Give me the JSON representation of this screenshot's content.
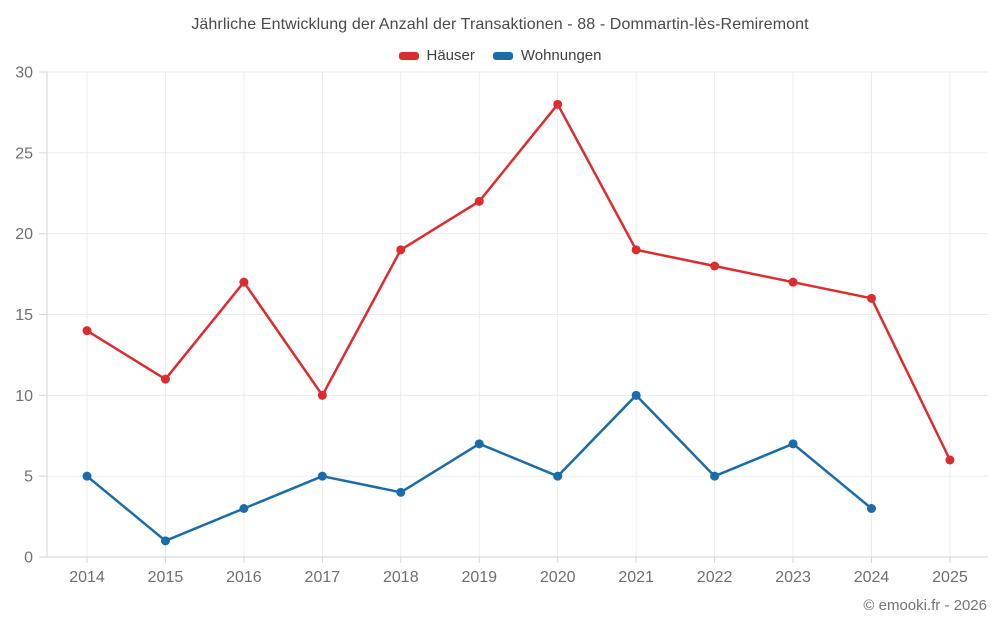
{
  "header": {
    "title": "Jährliche Entwicklung der Anzahl der Transaktionen - 88 - Dommartin-lès-Remiremont"
  },
  "footer": {
    "credit": "© emooki.fr - 2026"
  },
  "colors": {
    "hauser": "#dc2c30",
    "wohnungen": "#1b6ca8",
    "grid": "#ebebeb",
    "axis": "#d6d6d6",
    "tick_label": "#6f6f6f"
  },
  "chart_data": {
    "type": "line",
    "title": "Jährliche Entwicklung der Anzahl der Transaktionen - 88 - Dommartin-lès-Remiremont",
    "categories": [
      "2014",
      "2015",
      "2016",
      "2017",
      "2018",
      "2019",
      "2020",
      "2021",
      "2022",
      "2023",
      "2024",
      "2025"
    ],
    "series": [
      {
        "key": "hauser",
        "name": "Häuser",
        "color": "#dc2c30",
        "values": [
          14,
          11,
          17,
          10,
          19,
          22,
          28,
          19,
          18,
          17,
          16,
          6
        ]
      },
      {
        "key": "wohnungen",
        "name": "Wohnungen",
        "color": "#1b6ca8",
        "values": [
          5,
          1,
          3,
          5,
          4,
          7,
          5,
          10,
          5,
          7,
          3,
          null
        ]
      }
    ],
    "xlabel": "",
    "ylabel": "",
    "ylim": [
      0,
      30
    ],
    "yticks": [
      0,
      5,
      10,
      15,
      20,
      25,
      30
    ],
    "grid": true,
    "legend_position": "top"
  }
}
